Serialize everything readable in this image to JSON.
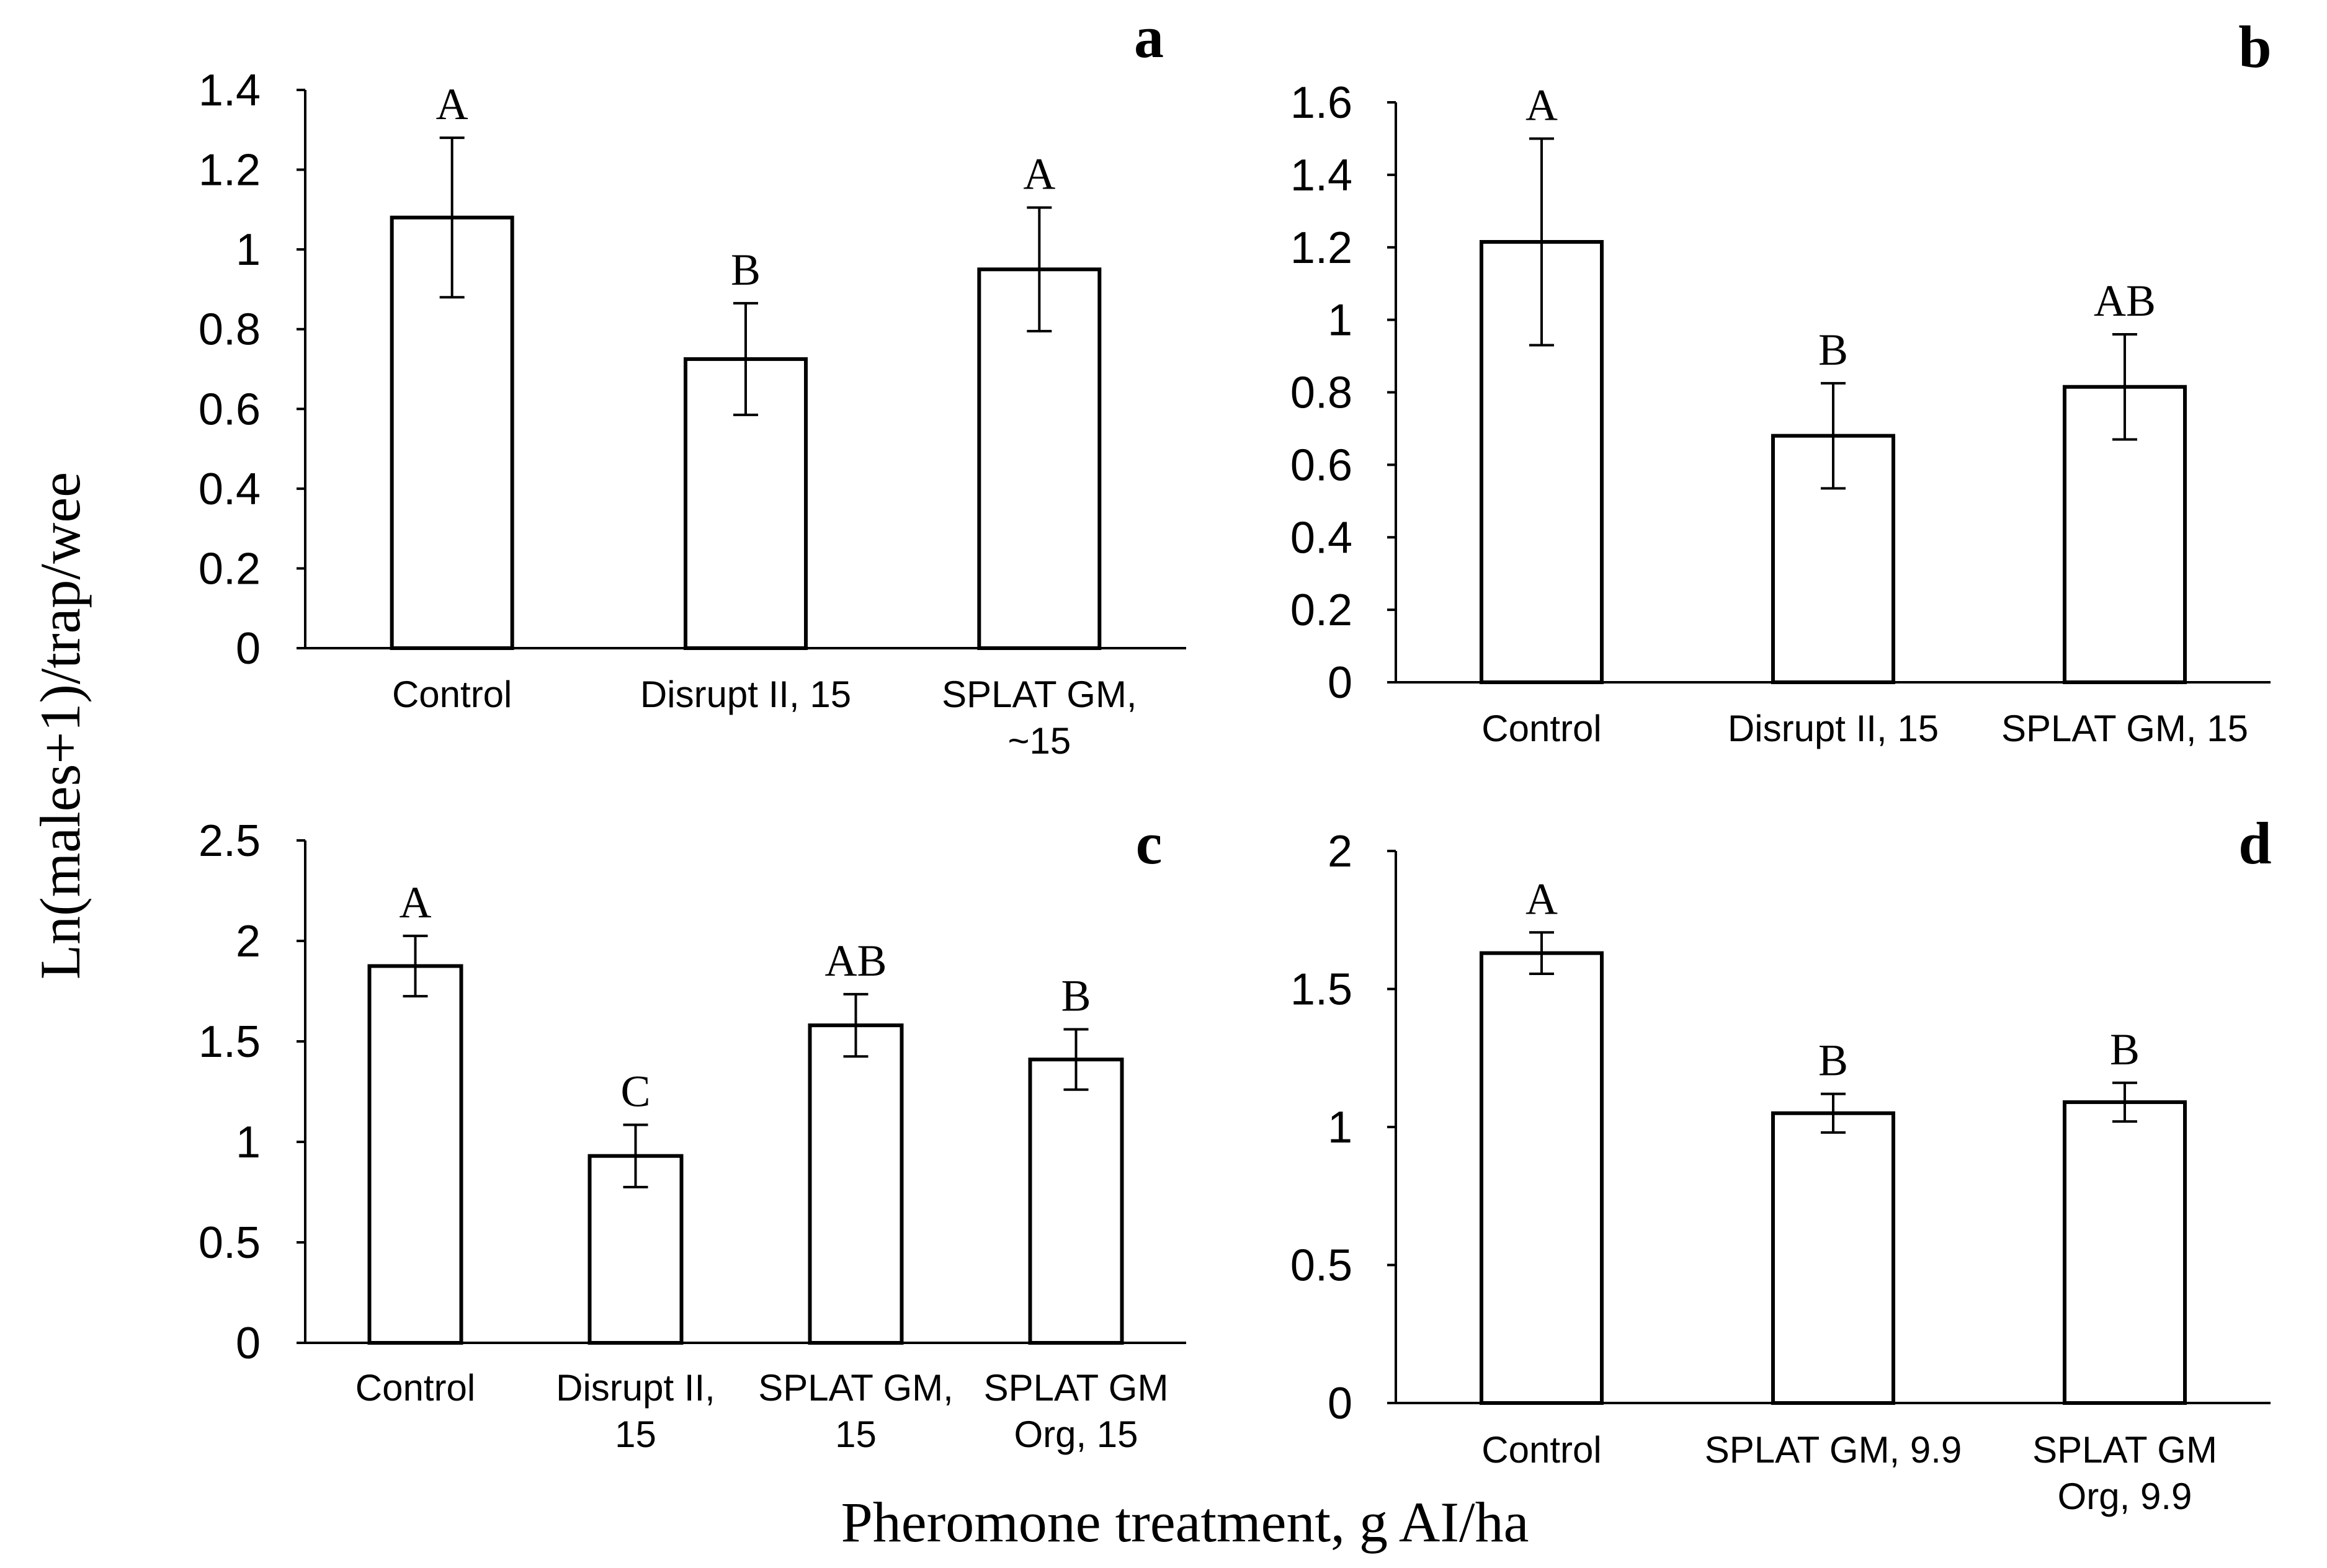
{
  "figure": {
    "y_axis_title": "Ln(males+1)/trap/wee",
    "x_axis_title": "Pheromone treatment, g AI/ha"
  },
  "chart_data": [
    {
      "panel": "a",
      "type": "bar",
      "categories": [
        [
          "Control"
        ],
        [
          "Disrupt II, 15"
        ],
        [
          "SPLAT GM,",
          "~15"
        ]
      ],
      "values": [
        1.08,
        0.725,
        0.95
      ],
      "errors": [
        0.2,
        0.14,
        0.155
      ],
      "letters": [
        "A",
        "B",
        "A"
      ],
      "ylim": [
        0,
        1.4
      ],
      "yticks": [
        0,
        0.2,
        0.4,
        0.6,
        0.8,
        1,
        1.2,
        1.4
      ],
      "ytick_labels": [
        "0",
        "0.2",
        "0.4",
        "0.6",
        "0.8",
        "1",
        "1.2",
        "1.4"
      ]
    },
    {
      "panel": "b",
      "type": "bar",
      "categories": [
        [
          "Control"
        ],
        [
          "Disrupt II, 15"
        ],
        [
          "SPLAT GM, 15"
        ]
      ],
      "values": [
        1.215,
        0.68,
        0.815
      ],
      "errors": [
        0.285,
        0.145,
        0.145
      ],
      "letters": [
        "A",
        "B",
        "AB"
      ],
      "ylim": [
        0,
        1.6
      ],
      "yticks": [
        0,
        0.2,
        0.4,
        0.6,
        0.8,
        1,
        1.2,
        1.4,
        1.6
      ],
      "ytick_labels": [
        "0",
        "0.2",
        "0.4",
        "0.6",
        "0.8",
        "1",
        "1.2",
        "1.4",
        "1.6"
      ]
    },
    {
      "panel": "c",
      "type": "bar",
      "categories": [
        [
          "Control"
        ],
        [
          "Disrupt II,",
          "15"
        ],
        [
          "SPLAT GM,",
          "15"
        ],
        [
          "SPLAT GM",
          "Org, 15"
        ]
      ],
      "values": [
        1.875,
        0.93,
        1.58,
        1.41
      ],
      "errors": [
        0.15,
        0.155,
        0.155,
        0.15
      ],
      "letters": [
        "A",
        "C",
        "AB",
        "B"
      ],
      "ylim": [
        0,
        2.5
      ],
      "yticks": [
        0,
        0.5,
        1,
        1.5,
        2,
        2.5
      ],
      "ytick_labels": [
        "0",
        "0.5",
        "1",
        "1.5",
        "2",
        "2.5"
      ]
    },
    {
      "panel": "d",
      "type": "bar",
      "categories": [
        [
          "Control"
        ],
        [
          "SPLAT GM, 9.9"
        ],
        [
          "SPLAT GM",
          "Org, 9.9"
        ]
      ],
      "values": [
        1.63,
        1.05,
        1.09
      ],
      "errors": [
        0.075,
        0.07,
        0.07
      ],
      "letters": [
        "A",
        "B",
        "B"
      ],
      "ylim": [
        0,
        2
      ],
      "yticks": [
        0,
        0.5,
        1,
        1.5,
        2
      ],
      "ytick_labels": [
        "0",
        "0.5",
        "1",
        "1.5",
        "2"
      ]
    }
  ]
}
